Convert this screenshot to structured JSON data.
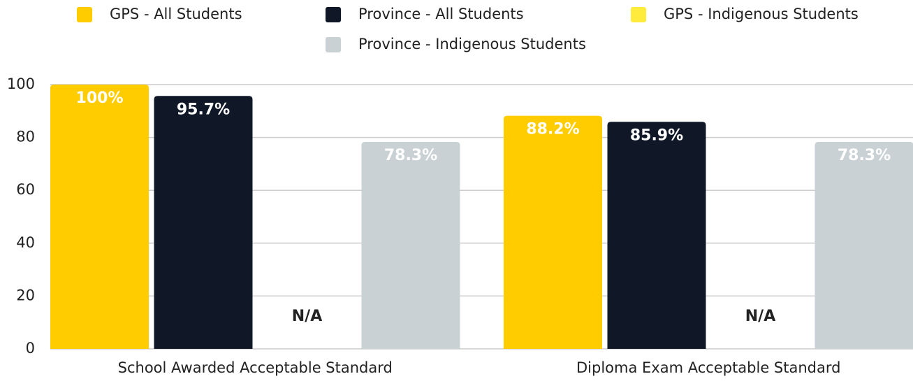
{
  "chart_data": {
    "type": "bar",
    "categories": [
      "School Awarded Acceptable Standard",
      "Diploma Exam Acceptable Standard"
    ],
    "series": [
      {
        "name": "GPS - All Students",
        "color": "#FFCC00",
        "values": [
          100,
          88.2
        ],
        "value_labels": [
          "100%",
          "88.2%"
        ]
      },
      {
        "name": "Province - All Students",
        "color": "#101828",
        "values": [
          95.7,
          85.9
        ],
        "value_labels": [
          "95.7%",
          "85.9%"
        ]
      },
      {
        "name": "GPS - Indigenous Students",
        "color": "#FFEB3B",
        "values": [
          null,
          null
        ],
        "value_labels": [
          "N/A",
          "N/A"
        ]
      },
      {
        "name": "Province - Indigenous Students",
        "color": "#C9D1D5",
        "values": [
          78.3,
          78.3
        ],
        "value_labels": [
          "78.3%",
          "78.3%"
        ]
      }
    ],
    "ylim": [
      0,
      100
    ],
    "yticks": [
      0,
      20,
      40,
      60,
      80,
      100
    ],
    "grid": true
  }
}
